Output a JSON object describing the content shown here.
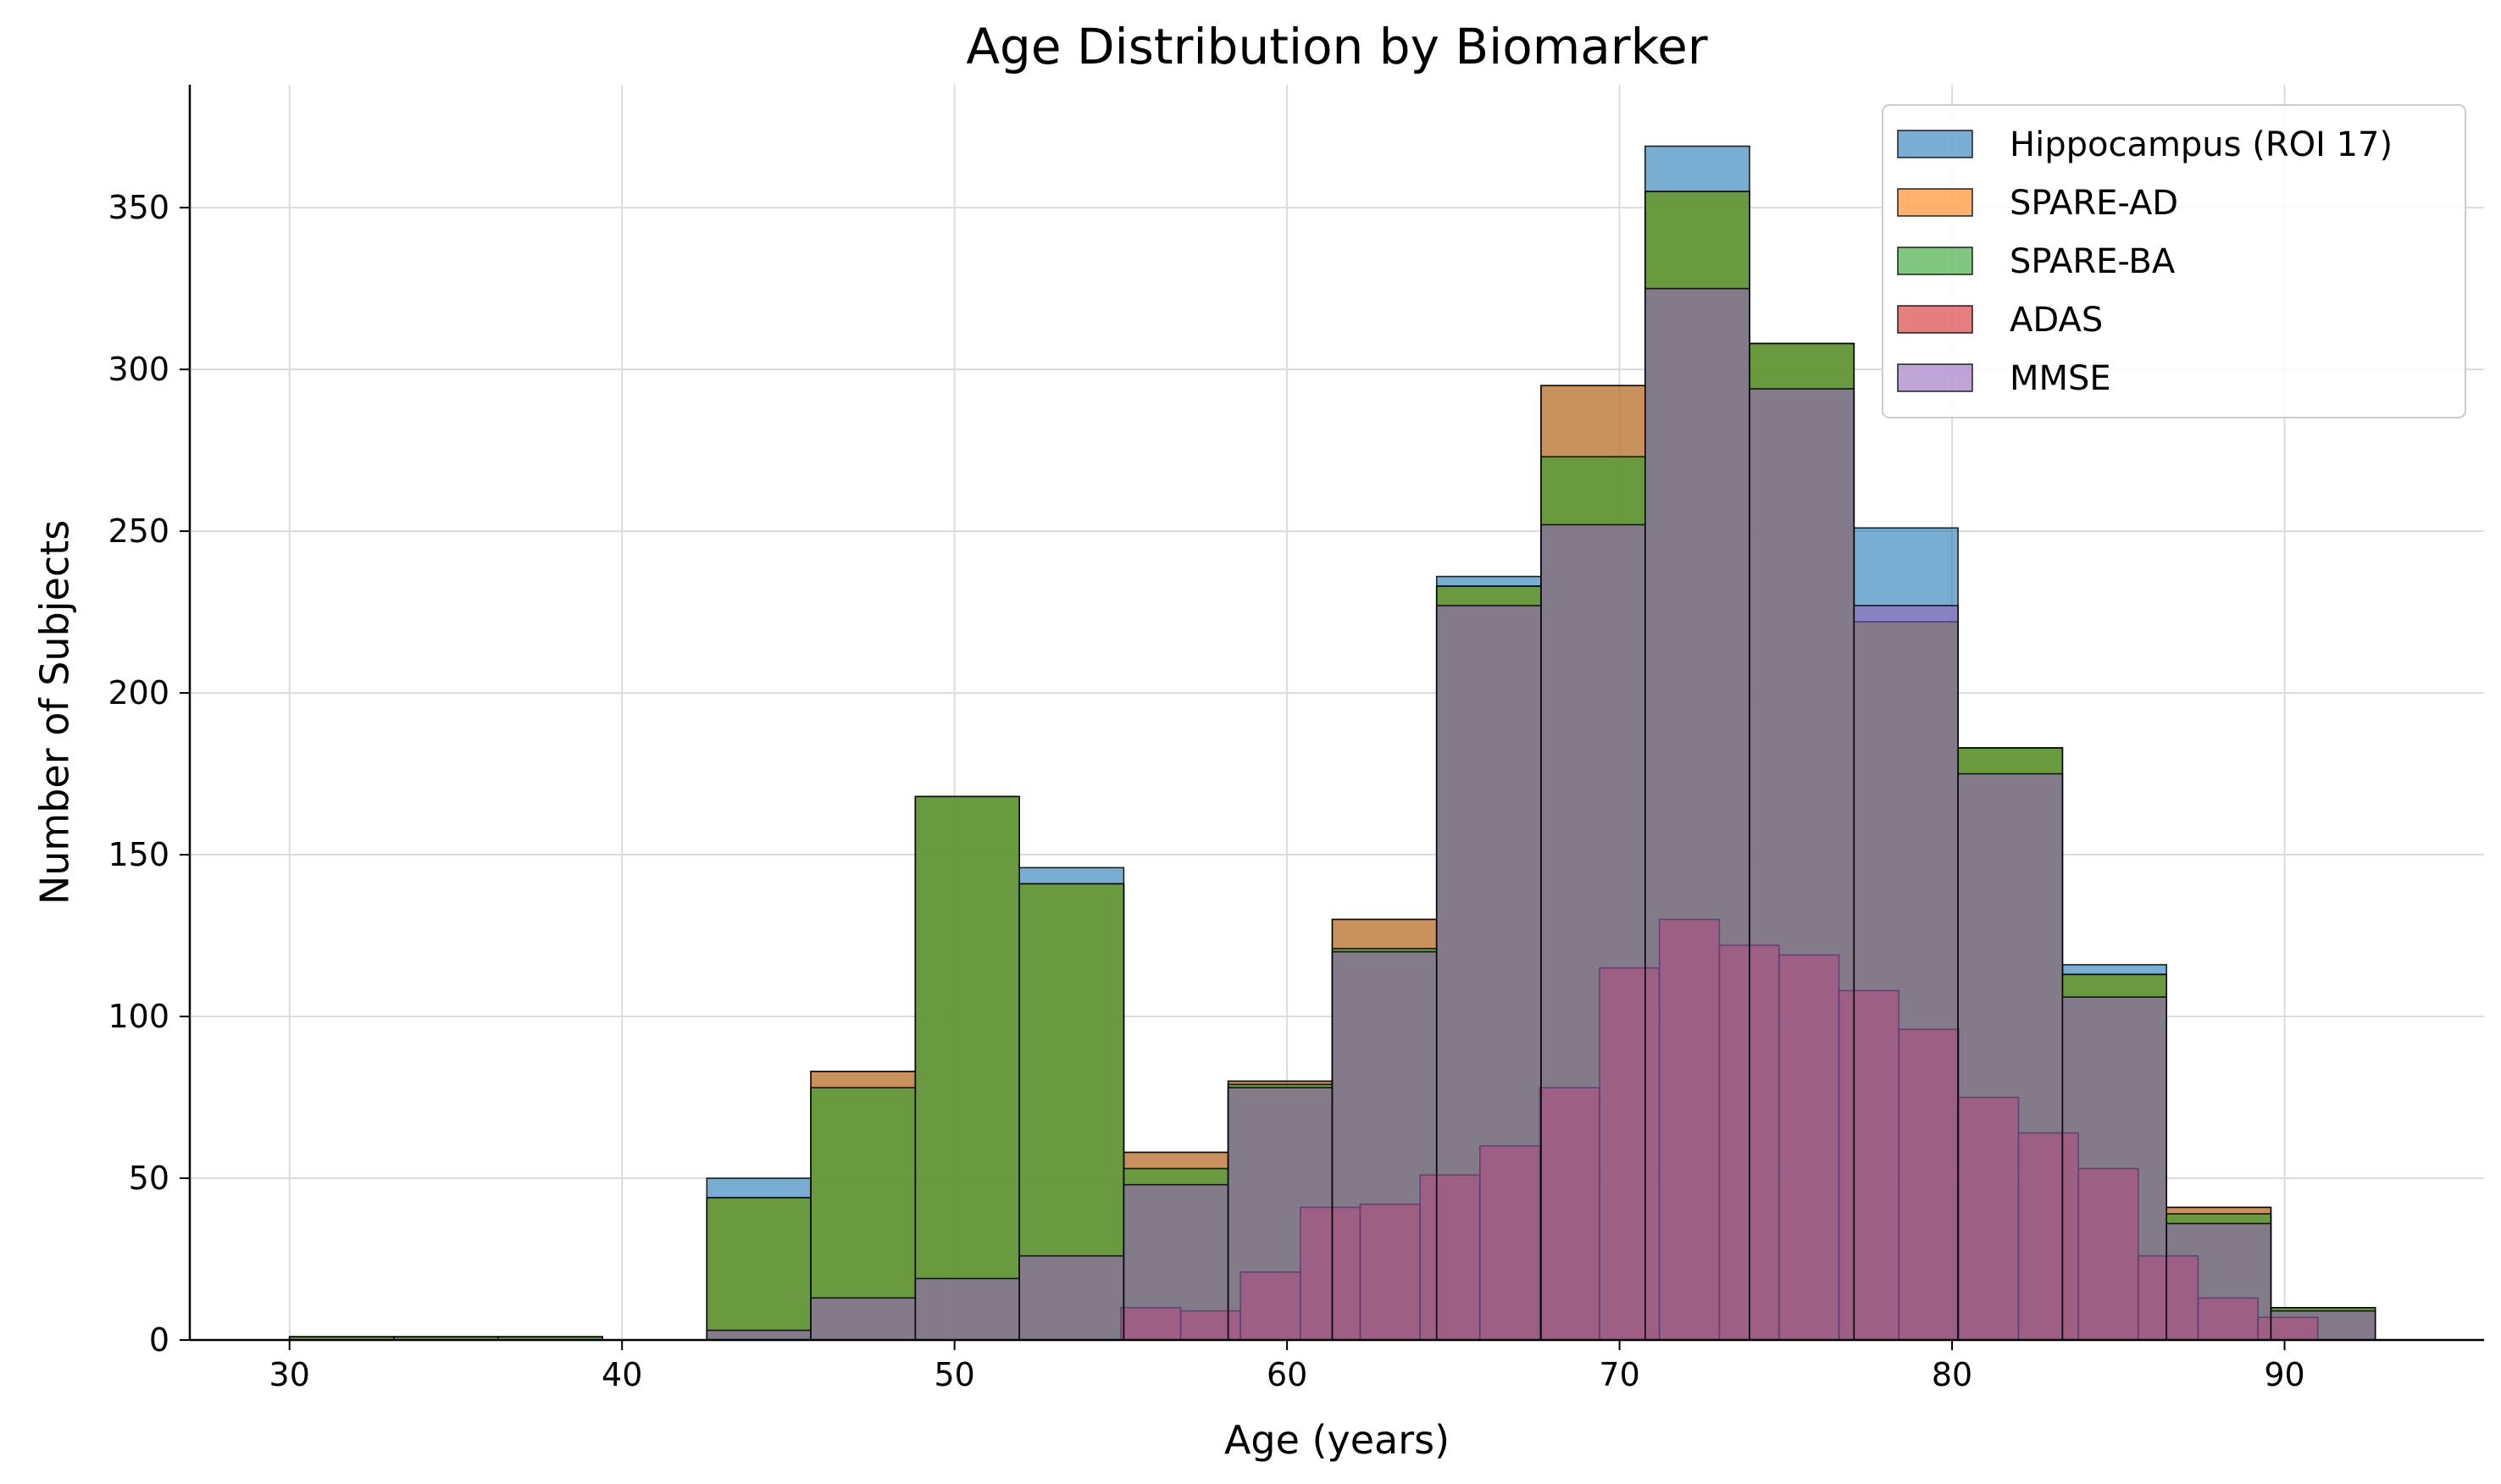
{
  "chart_data": {
    "type": "bar",
    "subtype": "overlaid-histogram",
    "title": "Age Distribution by Biomarker",
    "xlabel": "Age (years)",
    "ylabel": "Number of Subjects",
    "xlim": [
      27,
      96
    ],
    "ylim": [
      0,
      388
    ],
    "xticks": [
      30,
      40,
      50,
      60,
      70,
      80,
      90
    ],
    "yticks": [
      0,
      50,
      100,
      150,
      200,
      250,
      300,
      350
    ],
    "grid": true,
    "legend_position": "top-right",
    "series": [
      {
        "name": "Hippocampus (ROI 17)",
        "color": "#1f77b4",
        "bin_edges": [
          30.0,
          33.14,
          36.27,
          39.41,
          42.55,
          45.68,
          48.82,
          51.95,
          55.09,
          58.23,
          61.36,
          64.5,
          67.64,
          70.77,
          73.91,
          77.05,
          80.18,
          83.32,
          86.45,
          89.59,
          92.73
        ],
        "counts": [
          1,
          1,
          1,
          0,
          50,
          83,
          168,
          146,
          58,
          80,
          130,
          236,
          295,
          369,
          308,
          251,
          183,
          116,
          41,
          10
        ]
      },
      {
        "name": "SPARE-AD",
        "color": "#ff7f0e",
        "bin_edges": [
          30.0,
          33.14,
          36.27,
          39.41,
          42.55,
          45.68,
          48.82,
          51.95,
          55.09,
          58.23,
          61.36,
          64.5,
          67.64,
          70.77,
          73.91,
          77.05,
          80.18,
          83.32,
          86.45,
          89.59,
          92.73
        ],
        "counts": [
          1,
          1,
          1,
          0,
          44,
          83,
          168,
          141,
          58,
          80,
          130,
          233,
          295,
          355,
          308,
          222,
          183,
          113,
          41,
          10
        ]
      },
      {
        "name": "SPARE-BA",
        "color": "#2ca02c",
        "bin_edges": [
          30.0,
          33.14,
          36.27,
          39.41,
          42.55,
          45.68,
          48.82,
          51.95,
          55.09,
          58.23,
          61.36,
          64.5,
          67.64,
          70.77,
          73.91,
          77.05,
          80.18,
          83.32,
          86.45,
          89.59,
          92.73
        ],
        "counts": [
          1,
          1,
          1,
          0,
          44,
          78,
          168,
          141,
          53,
          79,
          121,
          233,
          273,
          355,
          308,
          222,
          183,
          113,
          39,
          10
        ]
      },
      {
        "name": "ADAS",
        "color": "#d62728",
        "bin_edges": [
          55.0,
          56.8,
          58.6,
          60.4,
          62.2,
          64.0,
          65.8,
          67.6,
          69.4,
          71.2,
          73.0,
          74.8,
          76.6,
          78.4,
          80.2,
          82.0,
          83.8,
          85.6,
          87.4,
          89.2,
          91.0
        ],
        "counts": [
          10,
          9,
          21,
          41,
          42,
          51,
          60,
          78,
          115,
          130,
          122,
          119,
          108,
          96,
          75,
          64,
          53,
          26,
          13,
          7
        ]
      },
      {
        "name": "MMSE",
        "color": "#9467bd",
        "bin_edges": [
          30.0,
          33.14,
          36.27,
          39.41,
          42.55,
          45.68,
          48.82,
          51.95,
          55.09,
          58.23,
          61.36,
          64.5,
          67.64,
          70.77,
          73.91,
          77.05,
          80.18,
          83.32,
          86.45,
          89.59,
          92.73
        ],
        "counts": [
          0,
          0,
          0,
          0,
          3,
          13,
          19,
          26,
          48,
          78,
          120,
          227,
          252,
          325,
          294,
          227,
          175,
          106,
          36,
          9
        ]
      }
    ]
  }
}
